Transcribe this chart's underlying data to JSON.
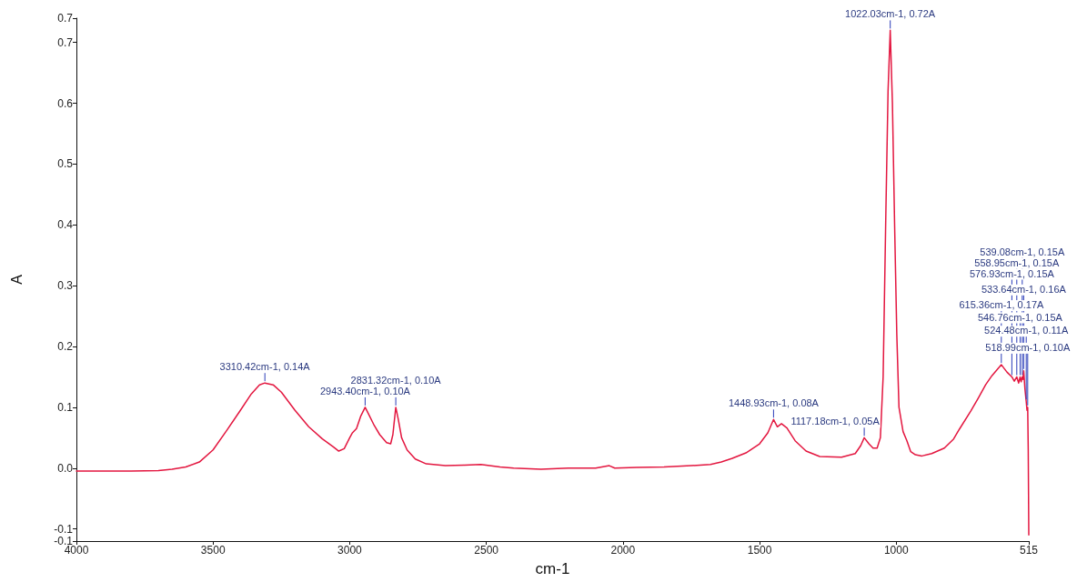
{
  "chart_data": {
    "type": "line",
    "xlabel": "cm-1",
    "ylabel": "A",
    "xlim": [
      4000,
      515
    ],
    "xticks": [
      4000,
      3500,
      3000,
      2500,
      2000,
      1500,
      1000,
      515
    ],
    "ylim": [
      -0.12,
      0.74
    ],
    "yticks": [
      {
        "value": -0.12,
        "label": "-0.1"
      },
      -0.1,
      {
        "value": 0,
        "label": "0.0"
      },
      0.1,
      0.2,
      0.3,
      0.4,
      0.5,
      0.6,
      0.7,
      {
        "value": 0.74,
        "label": "0.7"
      }
    ],
    "marker": "none",
    "line_style": "solid",
    "color": "#e3163f",
    "x": [
      4000,
      3900,
      3800,
      3700,
      3650,
      3600,
      3550,
      3500,
      3450,
      3400,
      3360,
      3330,
      3310.42,
      3280,
      3250,
      3200,
      3150,
      3100,
      3060,
      3040,
      3020,
      3000,
      2990,
      2975,
      2960,
      2943.4,
      2930,
      2910,
      2890,
      2865,
      2850,
      2842,
      2831.32,
      2822,
      2810,
      2790,
      2760,
      2720,
      2650,
      2580,
      2520,
      2450,
      2400,
      2300,
      2200,
      2100,
      2050,
      2030,
      1950,
      1850,
      1750,
      1680,
      1640,
      1600,
      1550,
      1500,
      1470,
      1448.93,
      1435,
      1420,
      1400,
      1370,
      1330,
      1280,
      1200,
      1150,
      1130,
      1117.18,
      1100,
      1085,
      1070,
      1058,
      1048,
      1038,
      1030,
      1022.03,
      1014,
      1006,
      998,
      990,
      975,
      961,
      947,
      930,
      906,
      870,
      824,
      790,
      769,
      727,
      700,
      673,
      650,
      631,
      615.36,
      595,
      576.93,
      568,
      558.95,
      552,
      546.76,
      543,
      539.08,
      536,
      533.64,
      529,
      524.48,
      521.5,
      518.99,
      517,
      515
    ],
    "values": [
      -0.005,
      -0.005,
      -0.005,
      -0.004,
      -0.002,
      0.002,
      0.01,
      0.03,
      0.062,
      0.095,
      0.122,
      0.137,
      0.14,
      0.137,
      0.125,
      0.095,
      0.068,
      0.048,
      0.035,
      0.028,
      0.032,
      0.05,
      0.058,
      0.065,
      0.085,
      0.1,
      0.088,
      0.07,
      0.055,
      0.042,
      0.04,
      0.055,
      0.1,
      0.08,
      0.05,
      0.03,
      0.015,
      0.007,
      0.004,
      0.005,
      0.006,
      0.002,
      0,
      -0.002,
      0,
      0,
      0.004,
      0,
      0.001,
      0.002,
      0.004,
      0.006,
      0.01,
      0.016,
      0.025,
      0.04,
      0.058,
      0.08,
      0.068,
      0.073,
      0.066,
      0.045,
      0.028,
      0.019,
      0.018,
      0.024,
      0.037,
      0.05,
      0.04,
      0.033,
      0.033,
      0.05,
      0.15,
      0.42,
      0.62,
      0.72,
      0.6,
      0.4,
      0.22,
      0.1,
      0.06,
      0.045,
      0.027,
      0.022,
      0.02,
      0.024,
      0.033,
      0.048,
      0.064,
      0.094,
      0.115,
      0.137,
      0.152,
      0.162,
      0.17,
      0.158,
      0.15,
      0.143,
      0.15,
      0.14,
      0.15,
      0.142,
      0.15,
      0.146,
      0.16,
      0.13,
      0.11,
      0.095,
      0.1,
      0.03,
      -0.11
    ],
    "annotations": [
      {
        "text": "1022.03cm-1, 0.72A",
        "x": 1022.03,
        "y": 0.72
      },
      {
        "text": "3310.42cm-1, 0.14A",
        "x": 3310.42,
        "y": 0.14
      },
      {
        "text": "2943.40cm-1, 0.10A",
        "x": 2943.4,
        "y": 0.1
      },
      {
        "text": "2831.32cm-1, 0.10A",
        "x": 2831.32,
        "y": 0.1
      },
      {
        "text": "1448.93cm-1, 0.08A",
        "x": 1448.93,
        "y": 0.08
      },
      {
        "text": "1117.18cm-1, 0.05A",
        "x": 1117.18,
        "y": 0.05
      },
      {
        "text": "518.99cm-1, 0.10A",
        "x": 518.99,
        "y": 0.1
      },
      {
        "text": "524.48cm-1, 0.11A",
        "x": 524.48,
        "y": 0.11
      },
      {
        "text": "546.76cm-1, 0.15A",
        "x": 546.76,
        "y": 0.15
      },
      {
        "text": "615.36cm-1, 0.17A",
        "x": 615.36,
        "y": 0.17
      },
      {
        "text": "533.64cm-1, 0.16A",
        "x": 533.64,
        "y": 0.16
      },
      {
        "text": "576.93cm-1, 0.15A",
        "x": 576.93,
        "y": 0.15
      },
      {
        "text": "558.95cm-1, 0.15A",
        "x": 558.95,
        "y": 0.15
      },
      {
        "text": "539.08cm-1, 0.15A",
        "x": 539.08,
        "y": 0.15
      }
    ]
  }
}
